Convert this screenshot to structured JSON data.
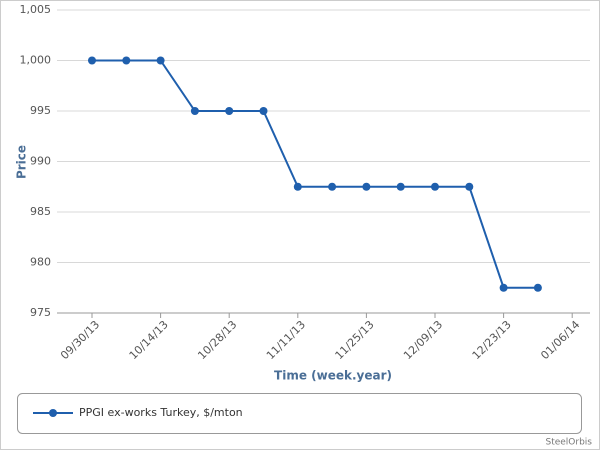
{
  "chart_data": {
    "type": "line",
    "x_label": "Time (week.year)",
    "y_label": "Price",
    "categories": [
      "09/30/13",
      null,
      "10/14/13",
      null,
      "10/28/13",
      null,
      "11/11/13",
      null,
      "11/25/13",
      null,
      "12/09/13",
      null,
      "12/23/13",
      null,
      "01/06/14"
    ],
    "series": [
      {
        "name": "PPGI ex-works Turkey, $/mton",
        "color": "#1f5fad",
        "values": [
          1000,
          1000,
          1000,
          995,
          995,
          995,
          987.5,
          987.5,
          987.5,
          987.5,
          987.5,
          987.5,
          977.5,
          977.5,
          null
        ]
      }
    ],
    "ylim": [
      975,
      1005
    ],
    "yticks": [
      975,
      980,
      985,
      990,
      995,
      {
        "value": 1000,
        "label": "1,000"
      },
      {
        "value": 1005,
        "label": "1,005"
      }
    ],
    "grid": true,
    "legend": "bottom",
    "credit": "SteelOrbis"
  }
}
